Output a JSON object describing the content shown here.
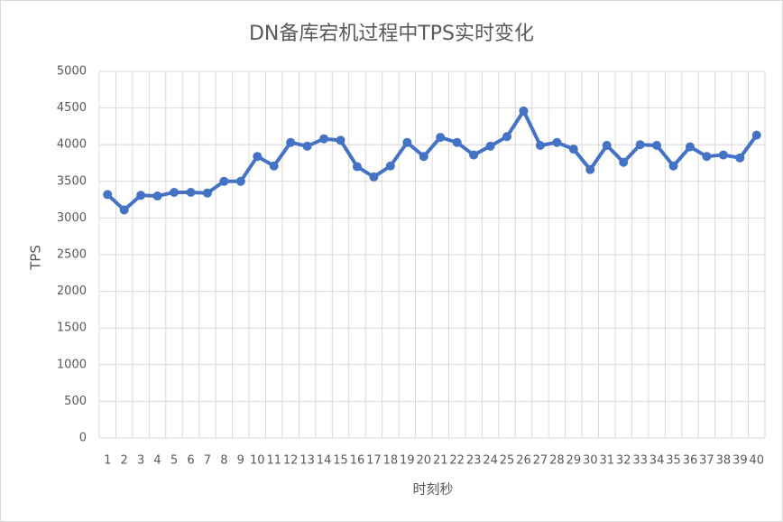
{
  "chart_data": {
    "type": "line",
    "title": "DN备库宕机过程中TPS实时变化",
    "x_label": "时刻秒",
    "y_label": "TPS",
    "categories": [
      "1",
      "2",
      "3",
      "4",
      "5",
      "6",
      "7",
      "8",
      "9",
      "10",
      "11",
      "12",
      "13",
      "14",
      "15",
      "16",
      "17",
      "18",
      "19",
      "20",
      "21",
      "22",
      "23",
      "24",
      "25",
      "26",
      "27",
      "28",
      "29",
      "30",
      "31",
      "32",
      "33",
      "34",
      "35",
      "36",
      "37",
      "38",
      "39",
      "40"
    ],
    "series": [
      {
        "name": "TPS",
        "color": "#4472c4",
        "values": [
          3320,
          3110,
          3310,
          3300,
          3350,
          3350,
          3340,
          3500,
          3500,
          3840,
          3710,
          4030,
          3980,
          4080,
          4060,
          3700,
          3560,
          3710,
          4030,
          3840,
          4100,
          4030,
          3860,
          3980,
          4110,
          4460,
          3990,
          4030,
          3940,
          3660,
          3990,
          3760,
          4000,
          3990,
          3710,
          3970,
          3840,
          3860,
          3820,
          4130
        ]
      }
    ],
    "ylim": [
      0,
      5000
    ],
    "yticks": [
      0,
      500,
      1000,
      1500,
      2000,
      2500,
      3000,
      3500,
      4000,
      4500,
      5000
    ],
    "grid": true
  }
}
